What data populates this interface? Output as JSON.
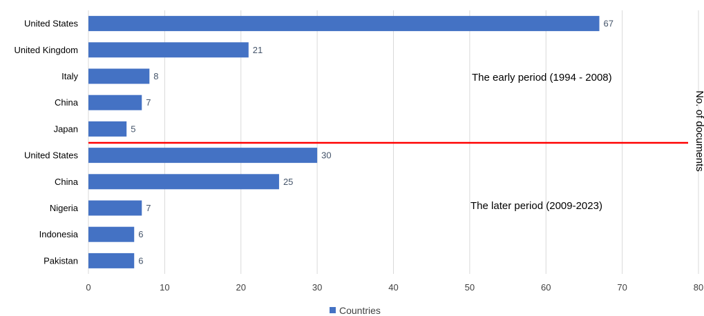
{
  "chart_data": {
    "type": "bar",
    "orientation": "horizontal",
    "categories": [
      "United States",
      "United Kingdom",
      "Italy",
      "China",
      "Japan",
      "United States",
      "China",
      "Nigeria",
      "Indonesia",
      "Pakistan"
    ],
    "values": [
      67,
      21,
      8,
      7,
      5,
      30,
      25,
      7,
      6,
      6
    ],
    "series": [
      {
        "name": "Countries",
        "values": [
          67,
          21,
          8,
          7,
          5,
          30,
          25,
          7,
          6,
          6
        ]
      }
    ],
    "xlim": [
      0,
      80
    ],
    "xticks": [
      0,
      10,
      20,
      30,
      40,
      50,
      60,
      70,
      80
    ],
    "ylabel": "No. of documents",
    "bar_color": "#4472c4",
    "divider_color": "#ff0000",
    "grid": "vertical",
    "legend": "bottom-center",
    "annotations": [
      "The early period (1994 - 2008)",
      "The later period (2009-2023)"
    ]
  }
}
